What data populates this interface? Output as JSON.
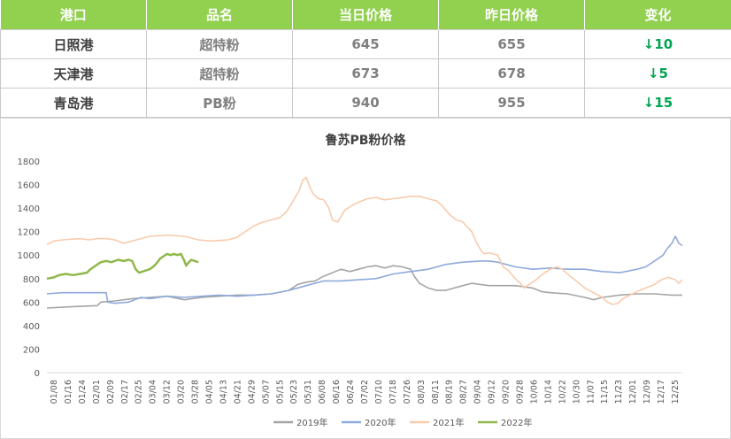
{
  "table": {
    "headers": [
      "港口",
      "品名",
      "当日价格",
      "昨日价格",
      "变化"
    ],
    "rows": [
      {
        "port": "日照港",
        "product": "超特粉",
        "today": "645",
        "yesterday": "655",
        "change": "↓10"
      },
      {
        "port": "天津港",
        "product": "超特粉",
        "today": "673",
        "yesterday": "678",
        "change": "↓5"
      },
      {
        "port": "青岛港",
        "product": "PB粉",
        "today": "940",
        "yesterday": "955",
        "change": "↓15"
      }
    ]
  },
  "chart_data": {
    "type": "line",
    "title": "鲁苏PB粉价格",
    "xlabel": "",
    "ylabel": "",
    "ylim": [
      0,
      1800
    ],
    "yticks": [
      0,
      200,
      400,
      600,
      800,
      1000,
      1200,
      1400,
      1600,
      1800
    ],
    "xlim": [
      1,
      366
    ],
    "xticks": [
      "01/08",
      "01/16",
      "01/24",
      "02/01",
      "02/09",
      "02/17",
      "02/25",
      "03/04",
      "03/12",
      "03/20",
      "03/28",
      "04/05",
      "04/13",
      "04/21",
      "04/29",
      "05/07",
      "05/15",
      "05/23",
      "05/31",
      "06/08",
      "06/16",
      "06/24",
      "07/02",
      "07/10",
      "07/18",
      "07/26",
      "08/03",
      "08/11",
      "08/19",
      "08/27",
      "09/04",
      "09/12",
      "09/20",
      "09/28",
      "10/06",
      "10/14",
      "10/22",
      "10/30",
      "11/07",
      "11/15",
      "11/23",
      "12/01",
      "12/09",
      "12/17",
      "12/25"
    ],
    "legend_position": "bottom",
    "grid": false,
    "series": [
      {
        "name": "2019年",
        "color": "#a5a5a5",
        "points": [
          [
            1,
            550
          ],
          [
            15,
            560
          ],
          [
            30,
            570
          ],
          [
            32,
            600
          ],
          [
            40,
            610
          ],
          [
            50,
            630
          ],
          [
            60,
            640
          ],
          [
            70,
            650
          ],
          [
            80,
            620
          ],
          [
            90,
            640
          ],
          [
            100,
            650
          ],
          [
            110,
            660
          ],
          [
            120,
            660
          ],
          [
            130,
            670
          ],
          [
            140,
            700
          ],
          [
            145,
            750
          ],
          [
            150,
            770
          ],
          [
            155,
            780
          ],
          [
            160,
            820
          ],
          [
            165,
            850
          ],
          [
            170,
            880
          ],
          [
            175,
            860
          ],
          [
            180,
            880
          ],
          [
            185,
            900
          ],
          [
            190,
            910
          ],
          [
            195,
            890
          ],
          [
            200,
            910
          ],
          [
            205,
            900
          ],
          [
            210,
            880
          ],
          [
            212,
            820
          ],
          [
            215,
            760
          ],
          [
            220,
            720
          ],
          [
            225,
            700
          ],
          [
            230,
            700
          ],
          [
            235,
            720
          ],
          [
            240,
            740
          ],
          [
            245,
            760
          ],
          [
            250,
            750
          ],
          [
            255,
            740
          ],
          [
            260,
            740
          ],
          [
            270,
            740
          ],
          [
            280,
            720
          ],
          [
            285,
            690
          ],
          [
            290,
            680
          ],
          [
            300,
            670
          ],
          [
            310,
            640
          ],
          [
            315,
            620
          ],
          [
            320,
            640
          ],
          [
            330,
            660
          ],
          [
            340,
            670
          ],
          [
            350,
            670
          ],
          [
            360,
            660
          ],
          [
            366,
            660
          ]
        ]
      },
      {
        "name": "2020年",
        "color": "#8ea9db",
        "points": [
          [
            1,
            670
          ],
          [
            10,
            680
          ],
          [
            20,
            680
          ],
          [
            35,
            680
          ],
          [
            36,
            600
          ],
          [
            40,
            590
          ],
          [
            48,
            600
          ],
          [
            55,
            640
          ],
          [
            60,
            630
          ],
          [
            70,
            650
          ],
          [
            80,
            640
          ],
          [
            90,
            650
          ],
          [
            100,
            660
          ],
          [
            110,
            650
          ],
          [
            120,
            660
          ],
          [
            130,
            670
          ],
          [
            140,
            700
          ],
          [
            150,
            740
          ],
          [
            160,
            780
          ],
          [
            170,
            780
          ],
          [
            180,
            790
          ],
          [
            190,
            800
          ],
          [
            200,
            840
          ],
          [
            210,
            860
          ],
          [
            220,
            880
          ],
          [
            225,
            900
          ],
          [
            230,
            920
          ],
          [
            240,
            940
          ],
          [
            250,
            950
          ],
          [
            255,
            950
          ],
          [
            260,
            940
          ],
          [
            270,
            900
          ],
          [
            280,
            880
          ],
          [
            290,
            890
          ],
          [
            300,
            880
          ],
          [
            310,
            880
          ],
          [
            320,
            860
          ],
          [
            330,
            850
          ],
          [
            340,
            880
          ],
          [
            345,
            900
          ],
          [
            350,
            950
          ],
          [
            355,
            1000
          ],
          [
            357,
            1050
          ],
          [
            360,
            1100
          ],
          [
            362,
            1160
          ],
          [
            364,
            1100
          ],
          [
            366,
            1080
          ]
        ]
      },
      {
        "name": "2021年",
        "color": "#f8cbad",
        "points": [
          [
            1,
            1090
          ],
          [
            5,
            1120
          ],
          [
            10,
            1130
          ],
          [
            20,
            1140
          ],
          [
            25,
            1130
          ],
          [
            30,
            1140
          ],
          [
            35,
            1140
          ],
          [
            40,
            1130
          ],
          [
            45,
            1100
          ],
          [
            50,
            1120
          ],
          [
            55,
            1140
          ],
          [
            60,
            1160
          ],
          [
            70,
            1170
          ],
          [
            80,
            1160
          ],
          [
            88,
            1130
          ],
          [
            95,
            1120
          ],
          [
            105,
            1130
          ],
          [
            110,
            1150
          ],
          [
            115,
            1200
          ],
          [
            120,
            1250
          ],
          [
            125,
            1280
          ],
          [
            130,
            1300
          ],
          [
            135,
            1320
          ],
          [
            138,
            1360
          ],
          [
            140,
            1400
          ],
          [
            142,
            1450
          ],
          [
            144,
            1500
          ],
          [
            146,
            1550
          ],
          [
            148,
            1640
          ],
          [
            150,
            1660
          ],
          [
            152,
            1580
          ],
          [
            154,
            1520
          ],
          [
            157,
            1480
          ],
          [
            160,
            1470
          ],
          [
            163,
            1400
          ],
          [
            165,
            1300
          ],
          [
            168,
            1280
          ],
          [
            172,
            1380
          ],
          [
            176,
            1420
          ],
          [
            180,
            1450
          ],
          [
            185,
            1480
          ],
          [
            190,
            1490
          ],
          [
            195,
            1470
          ],
          [
            200,
            1480
          ],
          [
            205,
            1490
          ],
          [
            210,
            1500
          ],
          [
            215,
            1500
          ],
          [
            220,
            1480
          ],
          [
            225,
            1460
          ],
          [
            228,
            1420
          ],
          [
            232,
            1350
          ],
          [
            236,
            1300
          ],
          [
            240,
            1280
          ],
          [
            245,
            1200
          ],
          [
            248,
            1100
          ],
          [
            250,
            1050
          ],
          [
            252,
            1010
          ],
          [
            255,
            1020
          ],
          [
            260,
            1000
          ],
          [
            263,
            900
          ],
          [
            266,
            870
          ],
          [
            270,
            800
          ],
          [
            273,
            760
          ],
          [
            275,
            720
          ],
          [
            278,
            750
          ],
          [
            282,
            790
          ],
          [
            285,
            830
          ],
          [
            290,
            880
          ],
          [
            294,
            900
          ],
          [
            297,
            880
          ],
          [
            300,
            840
          ],
          [
            305,
            780
          ],
          [
            310,
            720
          ],
          [
            315,
            680
          ],
          [
            320,
            640
          ],
          [
            323,
            600
          ],
          [
            326,
            580
          ],
          [
            329,
            590
          ],
          [
            332,
            630
          ],
          [
            336,
            660
          ],
          [
            340,
            690
          ],
          [
            345,
            720
          ],
          [
            350,
            750
          ],
          [
            354,
            790
          ],
          [
            358,
            810
          ],
          [
            362,
            790
          ],
          [
            364,
            760
          ],
          [
            366,
            790
          ]
        ]
      },
      {
        "name": "2022年",
        "color": "#8fb84a",
        "points": [
          [
            1,
            800
          ],
          [
            5,
            810
          ],
          [
            8,
            830
          ],
          [
            12,
            840
          ],
          [
            16,
            830
          ],
          [
            20,
            840
          ],
          [
            24,
            850
          ],
          [
            26,
            880
          ],
          [
            28,
            900
          ],
          [
            30,
            920
          ],
          [
            32,
            940
          ],
          [
            35,
            950
          ],
          [
            38,
            940
          ],
          [
            42,
            960
          ],
          [
            45,
            950
          ],
          [
            48,
            960
          ],
          [
            50,
            950
          ],
          [
            52,
            880
          ],
          [
            54,
            850
          ],
          [
            56,
            860
          ],
          [
            58,
            870
          ],
          [
            60,
            880
          ],
          [
            62,
            900
          ],
          [
            64,
            930
          ],
          [
            66,
            970
          ],
          [
            68,
            990
          ],
          [
            70,
            1010
          ],
          [
            72,
            1000
          ],
          [
            74,
            1010
          ],
          [
            76,
            1000
          ],
          [
            78,
            1010
          ],
          [
            80,
            950
          ],
          [
            81,
            910
          ],
          [
            82,
            930
          ],
          [
            84,
            960
          ],
          [
            86,
            950
          ],
          [
            88,
            940
          ]
        ]
      }
    ]
  }
}
